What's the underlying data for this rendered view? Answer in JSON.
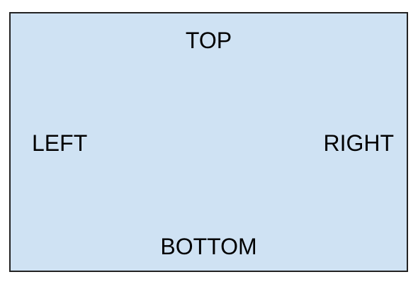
{
  "box": {
    "background_color": "#cfe2f3",
    "border_color": "#222222"
  },
  "labels": {
    "top": "TOP",
    "left": "LEFT",
    "right": "RIGHT",
    "bottom": "BOTTOM"
  }
}
